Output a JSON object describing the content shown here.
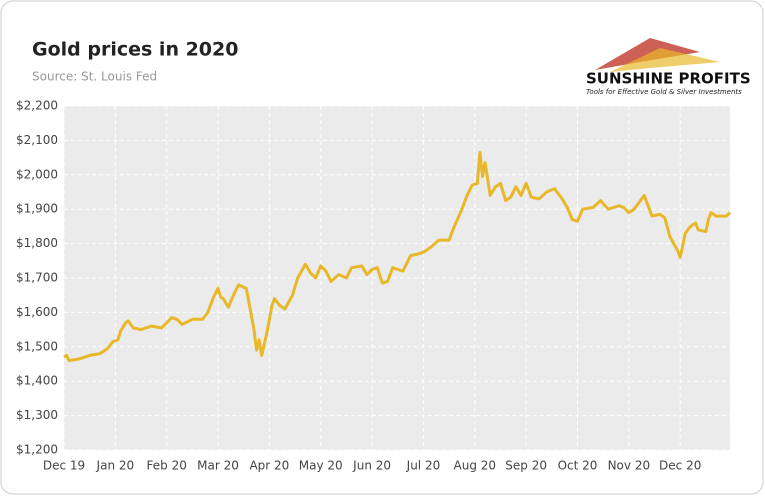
{
  "chart_data": {
    "type": "line",
    "title": "Gold prices in 2020",
    "subtitle": "Source: St. Louis Fed",
    "logo": {
      "name": "SUNSHINE PROFITS",
      "tagline": "Tools for Effective Gold & Silver Investments"
    },
    "x": [
      0,
      0.05,
      0.1,
      0.3,
      0.5,
      0.7,
      0.85,
      0.95,
      1.05,
      1.1,
      1.2,
      1.25,
      1.35,
      1.5,
      1.7,
      1.9,
      2.0,
      2.1,
      2.2,
      2.3,
      2.5,
      2.7,
      2.8,
      2.9,
      3.0,
      3.05,
      3.1,
      3.2,
      3.3,
      3.4,
      3.55,
      3.7,
      3.75,
      3.8,
      3.85,
      3.95,
      4.05,
      4.1,
      4.2,
      4.3,
      4.45,
      4.55,
      4.7,
      4.8,
      4.9,
      5.0,
      5.1,
      5.2,
      5.35,
      5.5,
      5.6,
      5.8,
      5.9,
      6.0,
      6.1,
      6.2,
      6.3,
      6.4,
      6.6,
      6.75,
      6.9,
      7.0,
      7.15,
      7.3,
      7.5,
      7.6,
      7.75,
      7.85,
      7.95,
      8.05,
      8.1,
      8.15,
      8.2,
      8.3,
      8.4,
      8.5,
      8.6,
      8.7,
      8.8,
      8.9,
      9.0,
      9.1,
      9.25,
      9.4,
      9.55,
      9.7,
      9.8,
      9.9,
      10.0,
      10.1,
      10.3,
      10.45,
      10.6,
      10.8,
      10.9,
      11.0,
      11.1,
      11.3,
      11.45,
      11.6,
      11.7,
      11.8,
      11.95,
      12.0,
      12.1,
      12.2,
      12.3,
      12.35,
      12.5,
      12.55,
      12.6,
      12.7,
      12.9,
      12.97
    ],
    "series": [
      {
        "color": "#e8b82a",
        "values": [
          1470,
          1475,
          1460,
          1465,
          1475,
          1480,
          1495,
          1515,
          1520,
          1545,
          1570,
          1575,
          1555,
          1550,
          1560,
          1555,
          1570,
          1585,
          1580,
          1565,
          1580,
          1580,
          1600,
          1640,
          1670,
          1645,
          1640,
          1615,
          1650,
          1680,
          1670,
          1550,
          1490,
          1520,
          1475,
          1540,
          1620,
          1640,
          1620,
          1610,
          1650,
          1700,
          1740,
          1715,
          1700,
          1735,
          1720,
          1690,
          1710,
          1700,
          1730,
          1735,
          1710,
          1725,
          1730,
          1685,
          1690,
          1730,
          1720,
          1765,
          1770,
          1775,
          1790,
          1810,
          1810,
          1850,
          1900,
          1940,
          1970,
          1975,
          2065,
          1995,
          2035,
          1940,
          1965,
          1975,
          1925,
          1935,
          1965,
          1940,
          1975,
          1935,
          1930,
          1950,
          1960,
          1930,
          1905,
          1870,
          1865,
          1900,
          1905,
          1925,
          1900,
          1910,
          1905,
          1890,
          1900,
          1940,
          1880,
          1885,
          1875,
          1820,
          1780,
          1760,
          1830,
          1850,
          1860,
          1840,
          1835,
          1870,
          1890,
          1880,
          1880,
          1890
        ]
      }
    ],
    "xlim": [
      0,
      12.97
    ],
    "xticks": [
      {
        "value": 0,
        "label": "Dec 19"
      },
      {
        "value": 1,
        "label": "Jan 20"
      },
      {
        "value": 2,
        "label": "Feb 20"
      },
      {
        "value": 3,
        "label": "Mar 20"
      },
      {
        "value": 4,
        "label": "Apr 20"
      },
      {
        "value": 5,
        "label": "May 20"
      },
      {
        "value": 6,
        "label": "Jun 20"
      },
      {
        "value": 7,
        "label": "Jul 20"
      },
      {
        "value": 8,
        "label": "Aug 20"
      },
      {
        "value": 9,
        "label": "Sep 20"
      },
      {
        "value": 10,
        "label": "Oct 20"
      },
      {
        "value": 11,
        "label": "Nov 20"
      },
      {
        "value": 12,
        "label": "Dec 20"
      }
    ],
    "ylim": [
      1200,
      2200
    ],
    "yticks": [
      {
        "value": 1200,
        "label": "$1,200"
      },
      {
        "value": 1300,
        "label": "$1,300"
      },
      {
        "value": 1400,
        "label": "$1,400"
      },
      {
        "value": 1500,
        "label": "$1,500"
      },
      {
        "value": 1600,
        "label": "$1,600"
      },
      {
        "value": 1700,
        "label": "$1,700"
      },
      {
        "value": 1800,
        "label": "$1,800"
      },
      {
        "value": 1900,
        "label": "$1,900"
      },
      {
        "value": 2000,
        "label": "$2,000"
      },
      {
        "value": 2100,
        "label": "$2,100"
      },
      {
        "value": 2200,
        "label": "$2,200"
      }
    ],
    "grid": true
  }
}
